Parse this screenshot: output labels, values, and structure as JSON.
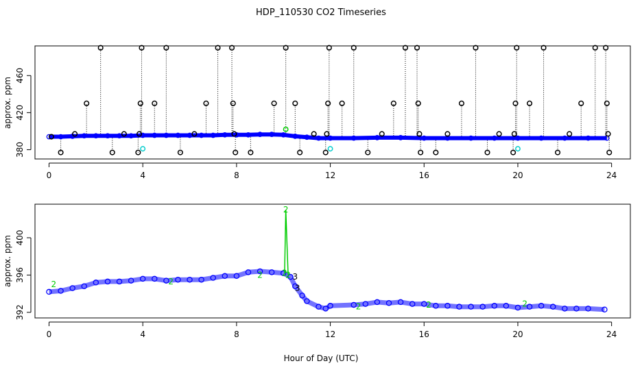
{
  "figure": {
    "title": "HDP_110530  CO2 Timeseries",
    "xlabel": "Hour of Day (UTC)"
  },
  "colors": {
    "outlier_marker": "#000000",
    "main_series": "#0000ff",
    "flag2": "#00cc00",
    "flag3": "#000000",
    "cyan_points": "#00cccc"
  },
  "chart_data": [
    {
      "type": "scatter",
      "panel": "top",
      "xlabel": "",
      "ylabel": "approx. ppm",
      "xlim": [
        -0.6,
        24.8
      ],
      "ylim": [
        370,
        492
      ],
      "xticks": [
        "0",
        "4",
        "8",
        "12",
        "16",
        "20",
        "24"
      ],
      "yticks": [
        "380",
        "420",
        "460"
      ],
      "series": [
        {
          "points": [
            [
              0.0,
              394
            ],
            [
              0.5,
              394
            ],
            [
              1.0,
              394.5
            ],
            [
              1.5,
              395
            ],
            [
              2.0,
              395
            ],
            [
              2.5,
              395
            ],
            [
              3.0,
              395
            ],
            [
              3.5,
              395
            ],
            [
              4.0,
              395.5
            ],
            [
              4.5,
              395.5
            ],
            [
              5.0,
              395.5
            ],
            [
              5.5,
              395.5
            ],
            [
              6.0,
              395.5
            ],
            [
              6.5,
              395.5
            ],
            [
              7.0,
              395.5
            ],
            [
              7.5,
              396
            ],
            [
              8.0,
              396
            ],
            [
              8.5,
              396
            ],
            [
              9.0,
              396.5
            ],
            [
              9.5,
              396.5
            ],
            [
              10.0,
              396
            ],
            [
              10.5,
              394.5
            ],
            [
              11.0,
              393.5
            ],
            [
              11.5,
              392.5
            ],
            [
              12.0,
              392.5
            ],
            [
              13.0,
              392.5
            ],
            [
              14.0,
              393
            ],
            [
              15.0,
              393
            ],
            [
              16.0,
              392.5
            ],
            [
              17.0,
              392.5
            ],
            [
              18.0,
              392.5
            ],
            [
              19.0,
              392.5
            ],
            [
              20.0,
              392.5
            ],
            [
              21.0,
              392.5
            ],
            [
              22.0,
              392.5
            ],
            [
              23.0,
              392.5
            ],
            [
              23.8,
              392.5
            ]
          ]
        },
        {
          "points": [
            [
              0.1,
              394
            ],
            [
              0.5,
              377
            ],
            [
              1.1,
              397
            ],
            [
              1.6,
              430
            ],
            [
              2.2,
              490
            ],
            [
              2.7,
              377
            ],
            [
              3.2,
              397
            ],
            [
              3.8,
              377
            ],
            [
              3.85,
              397
            ],
            [
              3.9,
              430
            ],
            [
              3.95,
              490
            ],
            [
              4.5,
              430
            ],
            [
              5.0,
              490
            ],
            [
              5.6,
              377
            ],
            [
              6.2,
              397
            ],
            [
              6.7,
              430
            ],
            [
              7.2,
              490
            ],
            [
              7.8,
              490
            ],
            [
              7.85,
              430
            ],
            [
              7.9,
              397
            ],
            [
              7.95,
              377
            ],
            [
              8.6,
              377
            ],
            [
              9.6,
              430
            ],
            [
              10.1,
              490
            ],
            [
              10.5,
              430
            ],
            [
              10.7,
              377
            ],
            [
              11.3,
              397
            ],
            [
              11.8,
              377
            ],
            [
              11.85,
              397
            ],
            [
              11.9,
              430
            ],
            [
              11.95,
              490
            ],
            [
              12.5,
              430
            ],
            [
              13.0,
              490
            ],
            [
              13.6,
              377
            ],
            [
              14.2,
              397
            ],
            [
              14.7,
              430
            ],
            [
              15.2,
              490
            ],
            [
              15.7,
              490
            ],
            [
              15.75,
              430
            ],
            [
              15.8,
              397
            ],
            [
              15.85,
              377
            ],
            [
              16.5,
              377
            ],
            [
              17.0,
              397
            ],
            [
              17.6,
              430
            ],
            [
              18.2,
              490
            ],
            [
              18.7,
              377
            ],
            [
              19.2,
              397
            ],
            [
              19.8,
              377
            ],
            [
              19.85,
              397
            ],
            [
              19.9,
              430
            ],
            [
              19.95,
              490
            ],
            [
              20.5,
              430
            ],
            [
              21.1,
              490
            ],
            [
              21.7,
              377
            ],
            [
              22.2,
              397
            ],
            [
              22.7,
              430
            ],
            [
              23.3,
              490
            ],
            [
              23.75,
              490
            ],
            [
              23.8,
              430
            ],
            [
              23.85,
              397
            ],
            [
              23.9,
              377
            ]
          ]
        },
        {
          "points": [
            [
              10.1,
              402
            ]
          ]
        },
        {
          "points": [
            [
              4.0,
              381
            ],
            [
              12.0,
              381
            ],
            [
              20.0,
              381
            ]
          ]
        }
      ]
    },
    {
      "type": "scatter",
      "panel": "bottom",
      "xlabel": "Hour of Day (UTC)",
      "ylabel": "approx. ppm",
      "xlim": [
        -0.6,
        24.8
      ],
      "ylim": [
        391.4,
        403.6
      ],
      "xticks": [
        "0",
        "4",
        "8",
        "12",
        "16",
        "20",
        "24"
      ],
      "yticks": [
        "392",
        "396",
        "400"
      ],
      "series": [
        {
          "points": [
            [
              0.0,
              394.2
            ],
            [
              0.5,
              394.3
            ],
            [
              1.0,
              394.6
            ],
            [
              1.5,
              394.8
            ],
            [
              2.0,
              395.2
            ],
            [
              2.5,
              395.3
            ],
            [
              3.0,
              395.3
            ],
            [
              3.5,
              395.4
            ],
            [
              4.0,
              395.6
            ],
            [
              4.5,
              395.6
            ],
            [
              5.0,
              395.4
            ],
            [
              5.5,
              395.5
            ],
            [
              6.0,
              395.5
            ],
            [
              6.5,
              395.5
            ],
            [
              7.0,
              395.7
            ],
            [
              7.5,
              395.9
            ],
            [
              8.0,
              395.9
            ],
            [
              8.5,
              396.3
            ],
            [
              9.0,
              396.4
            ],
            [
              9.5,
              396.3
            ],
            [
              10.0,
              396.2
            ],
            [
              10.3,
              395.8
            ],
            [
              10.5,
              394.8
            ],
            [
              10.8,
              393.8
            ],
            [
              11.0,
              393.2
            ],
            [
              11.5,
              392.6
            ],
            [
              11.8,
              392.4
            ],
            [
              12.0,
              392.7
            ],
            [
              13.0,
              392.8
            ],
            [
              13.5,
              392.9
            ],
            [
              14.0,
              393.1
            ],
            [
              14.5,
              393.0
            ],
            [
              15.0,
              393.1
            ],
            [
              15.5,
              392.9
            ],
            [
              16.0,
              392.9
            ],
            [
              16.5,
              392.7
            ],
            [
              17.0,
              392.7
            ],
            [
              17.5,
              392.6
            ],
            [
              18.0,
              392.6
            ],
            [
              18.5,
              392.6
            ],
            [
              19.0,
              392.7
            ],
            [
              19.5,
              392.7
            ],
            [
              20.0,
              392.5
            ],
            [
              20.5,
              392.6
            ],
            [
              21.0,
              392.7
            ],
            [
              21.5,
              392.6
            ],
            [
              22.0,
              392.4
            ],
            [
              22.5,
              392.4
            ],
            [
              23.0,
              392.4
            ],
            [
              23.7,
              392.3
            ]
          ]
        },
        {
          "points": [
            [
              0.2,
              395.0
            ],
            [
              5.2,
              395.3
            ],
            [
              9.0,
              396.0
            ],
            [
              10.05,
              396.2
            ],
            [
              10.1,
              403.0
            ],
            [
              10.2,
              396.0
            ],
            [
              13.2,
              392.6
            ],
            [
              16.2,
              392.8
            ],
            [
              20.3,
              392.9
            ]
          ]
        },
        {
          "points": [
            [
              10.5,
              395.8
            ],
            [
              10.6,
              394.6
            ]
          ]
        }
      ]
    }
  ]
}
